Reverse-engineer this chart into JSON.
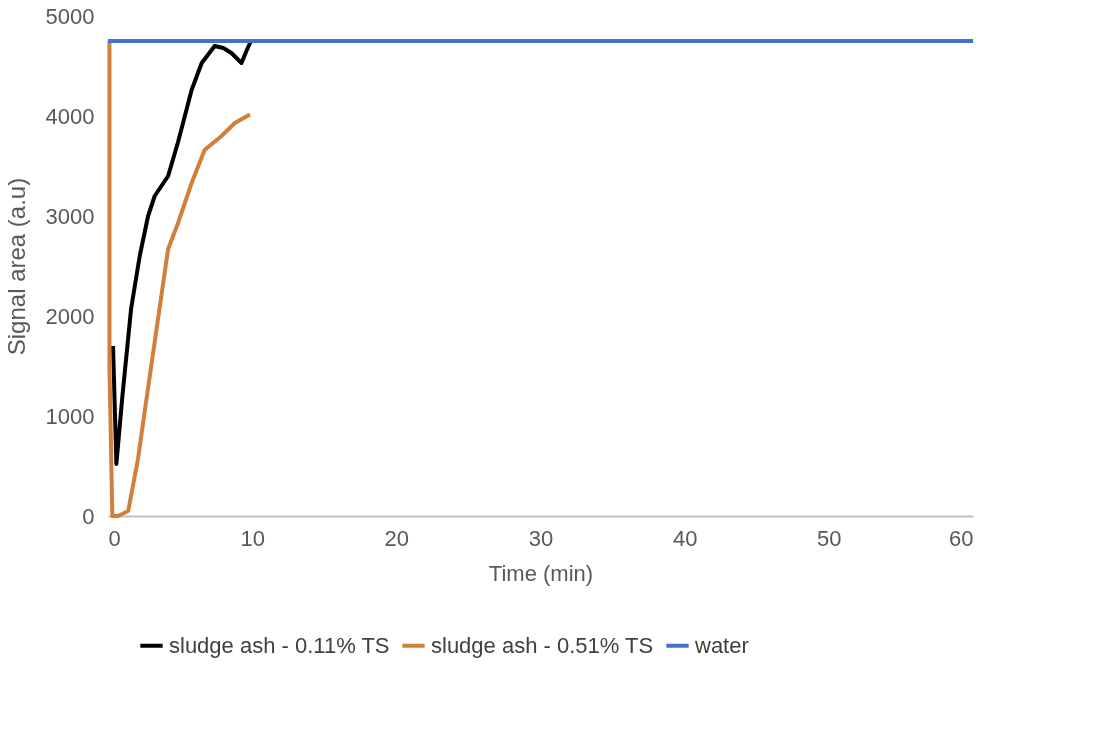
{
  "chart_data": {
    "type": "line",
    "xlabel": "Time (min)",
    "ylabel": "Signal area (a.u)",
    "xlim": [
      0,
      60
    ],
    "xticks": [
      0,
      10,
      20,
      30,
      40,
      50,
      60
    ],
    "ylim": [
      0,
      5000
    ],
    "yticks": [
      0,
      1000,
      2000,
      3000,
      4000,
      5000
    ],
    "grid": false,
    "legend": "bottom",
    "marker": "none",
    "line_style": "solid",
    "series": [
      {
        "name": "sludge ash - 0.11% TS",
        "color": "#000000",
        "x": [
          0.35,
          0.58,
          1.0,
          1.6,
          2.2,
          2.78,
          3.24,
          4.17,
          4.86,
          5.8,
          6.5,
          7.4,
          8.0,
          8.56,
          9.26,
          9.6,
          9.95
        ],
        "values": [
          1700,
          520,
          1200,
          2070,
          2600,
          3000,
          3200,
          3400,
          3740,
          4260,
          4530,
          4700,
          4680,
          4630,
          4530,
          4650,
          4760
        ]
      },
      {
        "name": "sludge ash - 0.51% TS",
        "color": "#d0803a",
        "x": [
          0.1,
          0.1,
          0.3,
          0.7,
          1.4,
          2.08,
          2.6,
          3.24,
          4.17,
          4.86,
          5.8,
          6.7,
          7.87,
          8.8,
          9.84
        ],
        "values": [
          4750,
          1500,
          0,
          0,
          50,
          570,
          1100,
          1740,
          2670,
          2930,
          3330,
          3660,
          3800,
          3930,
          4015
        ]
      },
      {
        "name": "water",
        "color": "#4472c4",
        "x": [
          0,
          60
        ],
        "values": [
          4750,
          4750
        ]
      }
    ]
  }
}
